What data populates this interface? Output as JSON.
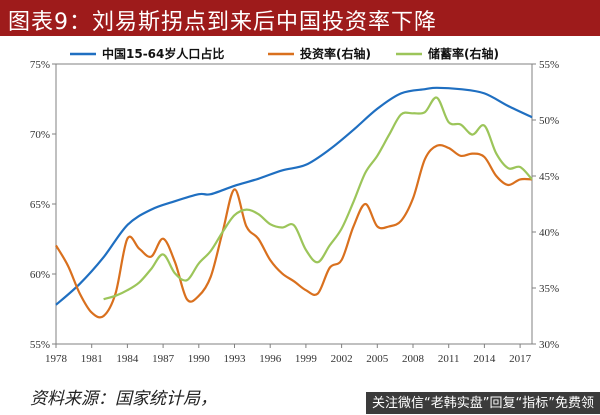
{
  "header": {
    "title": "图表9：刘易斯拐点到来后中国投资率下降"
  },
  "footer": {
    "source": "资料来源：国家统计局，",
    "watermark": "关注微信“老韩实盘”回复“指标”免费领"
  },
  "colors": {
    "series1": "#1f6fc1",
    "series2": "#d9701e",
    "series3": "#9cc55a",
    "title_bg": "#9e1b1b"
  },
  "chart_data": {
    "type": "line",
    "xlim": [
      1978,
      2018
    ],
    "x_ticks": [
      "1978",
      "1981",
      "1984",
      "1987",
      "1990",
      "1993",
      "1996",
      "1999",
      "2002",
      "2005",
      "2008",
      "2011",
      "2014",
      "2017"
    ],
    "y_left": {
      "ticks": [
        "55%",
        "60%",
        "65%",
        "70%",
        "75%"
      ],
      "lim": [
        55,
        75
      ]
    },
    "y_right": {
      "ticks": [
        "30%",
        "35%",
        "40%",
        "45%",
        "50%",
        "55%"
      ],
      "lim": [
        30,
        55
      ]
    },
    "legend_position": "top",
    "series": [
      {
        "name": "中国15-64岁人口占比",
        "axis": "left",
        "color": "#1f6fc1",
        "points": [
          [
            1978,
            57.8
          ],
          [
            1980,
            59.3
          ],
          [
            1982,
            61.2
          ],
          [
            1984,
            63.5
          ],
          [
            1986,
            64.6
          ],
          [
            1988,
            65.2
          ],
          [
            1990,
            65.7
          ],
          [
            1991,
            65.7
          ],
          [
            1993,
            66.3
          ],
          [
            1995,
            66.8
          ],
          [
            1997,
            67.4
          ],
          [
            1999,
            67.8
          ],
          [
            2001,
            68.9
          ],
          [
            2003,
            70.3
          ],
          [
            2005,
            71.8
          ],
          [
            2007,
            72.9
          ],
          [
            2009,
            73.2
          ],
          [
            2010,
            73.3
          ],
          [
            2012,
            73.2
          ],
          [
            2014,
            72.9
          ],
          [
            2016,
            72.0
          ],
          [
            2018,
            71.2
          ]
        ]
      },
      {
        "name": "投资率(右轴)",
        "axis": "right",
        "color": "#d9701e",
        "points": [
          [
            1978,
            38.8
          ],
          [
            1979,
            37.0
          ],
          [
            1980,
            34.5
          ],
          [
            1981,
            32.8
          ],
          [
            1982,
            32.5
          ],
          [
            1983,
            34.5
          ],
          [
            1984,
            39.4
          ],
          [
            1985,
            38.5
          ],
          [
            1986,
            37.8
          ],
          [
            1987,
            39.4
          ],
          [
            1988,
            37.3
          ],
          [
            1989,
            34.0
          ],
          [
            1990,
            34.3
          ],
          [
            1991,
            36.0
          ],
          [
            1992,
            40.0
          ],
          [
            1993,
            43.8
          ],
          [
            1994,
            40.5
          ],
          [
            1995,
            39.4
          ],
          [
            1996,
            37.5
          ],
          [
            1997,
            36.3
          ],
          [
            1998,
            35.6
          ],
          [
            1999,
            34.8
          ],
          [
            2000,
            34.5
          ],
          [
            2001,
            36.8
          ],
          [
            2002,
            37.5
          ],
          [
            2003,
            40.5
          ],
          [
            2004,
            42.5
          ],
          [
            2005,
            40.5
          ],
          [
            2006,
            40.5
          ],
          [
            2007,
            41.0
          ],
          [
            2008,
            43.0
          ],
          [
            2009,
            46.5
          ],
          [
            2010,
            47.7
          ],
          [
            2011,
            47.5
          ],
          [
            2012,
            46.8
          ],
          [
            2013,
            47.0
          ],
          [
            2014,
            46.7
          ],
          [
            2015,
            45.0
          ],
          [
            2016,
            44.2
          ],
          [
            2017,
            44.7
          ],
          [
            2018,
            44.7
          ]
        ]
      },
      {
        "name": "储蓄率(右轴)",
        "axis": "right",
        "color": "#9cc55a",
        "points": [
          [
            1982,
            34.0
          ],
          [
            1983,
            34.3
          ],
          [
            1984,
            34.8
          ],
          [
            1985,
            35.5
          ],
          [
            1986,
            36.7
          ],
          [
            1987,
            38.0
          ],
          [
            1988,
            36.3
          ],
          [
            1989,
            35.7
          ],
          [
            1990,
            37.2
          ],
          [
            1991,
            38.3
          ],
          [
            1992,
            40.0
          ],
          [
            1993,
            41.5
          ],
          [
            1994,
            42.0
          ],
          [
            1995,
            41.6
          ],
          [
            1996,
            40.7
          ],
          [
            1997,
            40.4
          ],
          [
            1998,
            40.6
          ],
          [
            1999,
            38.4
          ],
          [
            2000,
            37.3
          ],
          [
            2001,
            38.8
          ],
          [
            2002,
            40.3
          ],
          [
            2003,
            42.7
          ],
          [
            2004,
            45.3
          ],
          [
            2005,
            46.8
          ],
          [
            2006,
            48.7
          ],
          [
            2007,
            50.5
          ],
          [
            2008,
            50.6
          ],
          [
            2009,
            50.7
          ],
          [
            2010,
            52.0
          ],
          [
            2011,
            49.8
          ],
          [
            2012,
            49.6
          ],
          [
            2013,
            48.7
          ],
          [
            2014,
            49.5
          ],
          [
            2015,
            47.0
          ],
          [
            2016,
            45.7
          ],
          [
            2017,
            45.8
          ],
          [
            2018,
            44.7
          ]
        ]
      }
    ]
  }
}
